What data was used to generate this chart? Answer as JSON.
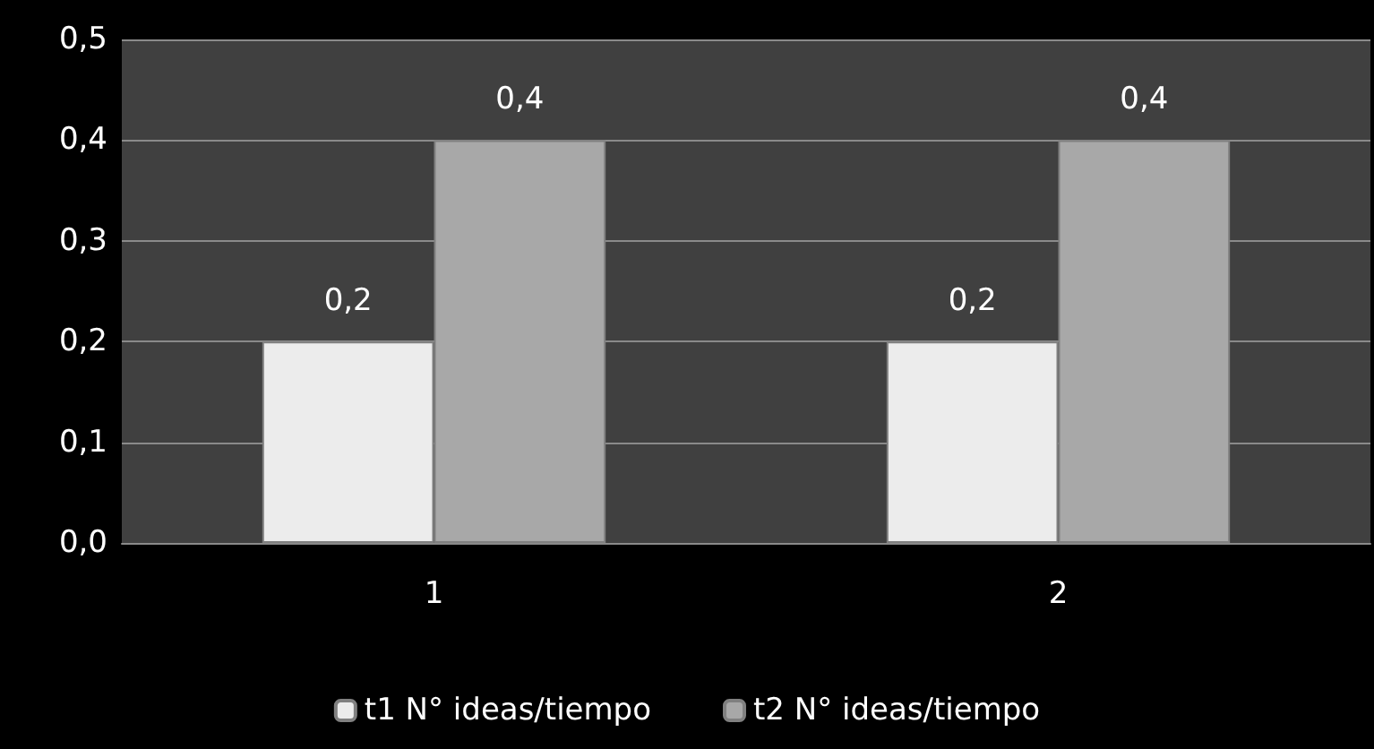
{
  "chart_data": {
    "type": "bar",
    "categories": [
      "1",
      "2"
    ],
    "series": [
      {
        "name": "t1 N° ideas/tiempo",
        "color": "#ececec",
        "values": [
          0.2,
          0.2
        ],
        "value_labels": [
          "0,2",
          "0,2"
        ]
      },
      {
        "name": "t2 N° ideas/tiempo",
        "color": "#a8a8a8",
        "values": [
          0.4,
          0.4
        ],
        "value_labels": [
          "0,4",
          "0,4"
        ]
      }
    ],
    "ylim": [
      0,
      0.5
    ],
    "yticks": [
      {
        "value": 0,
        "label": "0,0"
      },
      {
        "value": 0.1,
        "label": "0,1"
      },
      {
        "value": 0.2,
        "label": "0,2"
      },
      {
        "value": 0.3,
        "label": "0,3"
      },
      {
        "value": 0.4,
        "label": "0,4"
      },
      {
        "value": 0.5,
        "label": "0,5"
      }
    ],
    "grid": "y",
    "legend": "bottom"
  }
}
